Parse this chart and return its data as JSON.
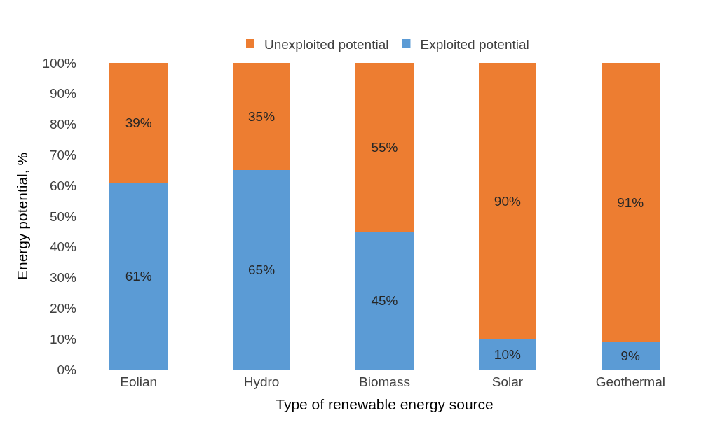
{
  "chart_data": {
    "type": "bar",
    "stacked": true,
    "xlabel": "Type of renewable energy source",
    "ylabel": "Energy potential, %",
    "categories": [
      "Eolian",
      "Hydro",
      "Biomass",
      "Solar",
      "Geothermal"
    ],
    "series": [
      {
        "name": "Exploited potential",
        "color": "#5b9bd5",
        "values": [
          61,
          65,
          45,
          10,
          9
        ],
        "value_labels": [
          "61%",
          "65%",
          "45%",
          "10%",
          "9%"
        ]
      },
      {
        "name": "Unexploited potential",
        "color": "#ed7d31",
        "values": [
          39,
          35,
          55,
          90,
          91
        ],
        "value_labels": [
          "39%",
          "35%",
          "55%",
          "90%",
          "91%"
        ]
      }
    ],
    "ylim": [
      0,
      100
    ],
    "yticks": [
      {
        "value": 0,
        "label": "0%"
      },
      {
        "value": 10,
        "label": "10%"
      },
      {
        "value": 20,
        "label": "20%"
      },
      {
        "value": 30,
        "label": "30%"
      },
      {
        "value": 40,
        "label": "40%"
      },
      {
        "value": 50,
        "label": "50%"
      },
      {
        "value": 60,
        "label": "60%"
      },
      {
        "value": 70,
        "label": "70%"
      },
      {
        "value": 80,
        "label": "80%"
      },
      {
        "value": 90,
        "label": "90%"
      },
      {
        "value": 100,
        "label": "100%"
      }
    ],
    "grid": false,
    "legend": "top"
  }
}
